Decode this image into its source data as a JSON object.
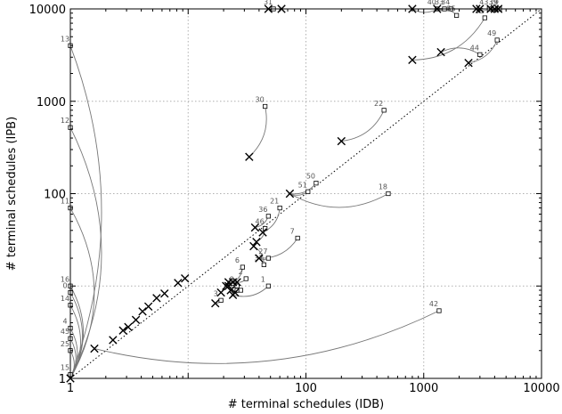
{
  "chart_data": {
    "type": "scatter",
    "xlabel": "# terminal schedules (IDB)",
    "ylabel": "# terminal schedules (IPB)",
    "xscale": "log",
    "yscale": "log",
    "xlim": [
      1,
      10000
    ],
    "ylim": [
      1,
      10000
    ],
    "xticks": [
      {
        "value": 1,
        "label": "1"
      },
      {
        "value": 100,
        "label": "100"
      },
      {
        "value": 1000,
        "label": "1000"
      },
      {
        "value": 10000,
        "label": "10000"
      }
    ],
    "yticks": [
      {
        "value": 1,
        "label": "1"
      },
      {
        "value": 100,
        "label": "100"
      },
      {
        "value": 1000,
        "label": "1000"
      },
      {
        "value": 10000,
        "label": "10000"
      }
    ],
    "grid": true,
    "diagonal": true,
    "points": [
      {
        "label": "13",
        "from": [
          1,
          1
        ],
        "to": [
          1,
          4000
        ]
      },
      {
        "label": "12",
        "from": [
          1,
          1
        ],
        "to": [
          1,
          520
        ]
      },
      {
        "label": "11",
        "from": [
          1,
          1
        ],
        "to": [
          1,
          70
        ]
      },
      {
        "label": "16",
        "from": [
          1,
          1
        ],
        "to": [
          1,
          10
        ]
      },
      {
        "label": "0",
        "from": [
          1,
          1
        ],
        "to": [
          1,
          8.5
        ]
      },
      {
        "label": "14",
        "from": [
          1,
          1
        ],
        "to": [
          1,
          6.2
        ]
      },
      {
        "label": "4",
        "from": [
          1,
          1
        ],
        "to": [
          1,
          3.5
        ]
      },
      {
        "label": "45",
        "from": [
          1,
          1
        ],
        "to": [
          1,
          2.7
        ]
      },
      {
        "label": "25",
        "from": [
          1,
          1
        ],
        "to": [
          1,
          2.0
        ]
      },
      {
        "label": "15",
        "from": [
          1,
          1
        ],
        "to": [
          1,
          1.1
        ]
      },
      {
        "label": "31",
        "from": [
          48,
          10000
        ],
        "to": [
          53,
          10000
        ]
      },
      {
        "label": "30",
        "from": [
          33,
          250
        ],
        "to": [
          45,
          880
        ]
      },
      {
        "label": "22",
        "from": [
          200,
          370
        ],
        "to": [
          460,
          800
        ]
      },
      {
        "label": "36",
        "from": [
          37,
          43
        ],
        "to": [
          48,
          57
        ]
      },
      {
        "label": "46",
        "from": [
          38,
          30
        ],
        "to": [
          45,
          42
        ]
      },
      {
        "label": "21",
        "from": [
          43,
          38
        ],
        "to": [
          60,
          70
        ]
      },
      {
        "label": "51",
        "from": [
          73,
          100
        ],
        "to": [
          104,
          105
        ]
      },
      {
        "label": "50",
        "from": [
          73,
          100
        ],
        "to": [
          122,
          130
        ]
      },
      {
        "label": "18",
        "from": [
          73,
          100
        ],
        "to": [
          500,
          100
        ]
      },
      {
        "label": "7",
        "from": [
          40,
          20
        ],
        "to": [
          85,
          33
        ]
      },
      {
        "label": "27",
        "from": [
          40,
          20
        ],
        "to": [
          48,
          20
        ]
      },
      {
        "label": "37",
        "from": [
          36,
          27
        ],
        "to": [
          44,
          17
        ]
      },
      {
        "label": "6",
        "from": [
          24,
          11
        ],
        "to": [
          29,
          16
        ]
      },
      {
        "label": "2",
        "from": [
          26,
          11
        ],
        "to": [
          31,
          12
        ]
      },
      {
        "label": "8",
        "from": [
          22,
          10
        ],
        "to": [
          26,
          10
        ]
      },
      {
        "label": "29",
        "from": [
          23,
          9
        ],
        "to": [
          26,
          9
        ]
      },
      {
        "label": "5",
        "from": [
          25,
          8.5
        ],
        "to": [
          28,
          9
        ]
      },
      {
        "label": "3",
        "from": [
          17,
          6.5
        ],
        "to": [
          19,
          7
        ]
      },
      {
        "label": "1",
        "from": [
          24,
          8
        ],
        "to": [
          48,
          10
        ]
      },
      {
        "label": "42",
        "from": [
          1.6,
          2.1
        ],
        "to": [
          1350,
          5.4
        ]
      },
      {
        "label": "49",
        "from": [
          2400,
          2600
        ],
        "to": [
          4200,
          4600
        ]
      },
      {
        "label": "44",
        "from": [
          1400,
          3400
        ],
        "to": [
          3000,
          3200
        ]
      },
      {
        "label": "35",
        "from": [
          800,
          2800
        ],
        "to": [
          3300,
          8000
        ]
      },
      {
        "label": "40",
        "from": [
          800,
          10000
        ],
        "to": [
          1300,
          10000
        ]
      },
      {
        "label": "33",
        "from": [
          1300,
          10000
        ],
        "to": [
          1500,
          10000
        ]
      },
      {
        "label": "34",
        "from": [
          1300,
          10000
        ],
        "to": [
          1700,
          10000
        ]
      },
      {
        "label": "55",
        "from": [
          1300,
          10000
        ],
        "to": [
          1900,
          8500
        ]
      },
      {
        "label": "43",
        "from": [
          2800,
          10000
        ],
        "to": [
          3600,
          10000
        ]
      },
      {
        "label": "39",
        "from": [
          3700,
          10000
        ],
        "to": [
          4300,
          10000
        ]
      },
      {
        "label": "19",
        "from": [
          4000,
          10000
        ],
        "to": [
          4400,
          10000
        ]
      }
    ],
    "extra_crosses": [
      [
        1,
        1
      ],
      [
        1.6,
        2.1
      ],
      [
        2.3,
        2.6
      ],
      [
        2.8,
        3.3
      ],
      [
        3.1,
        3.6
      ],
      [
        3.6,
        4.3
      ],
      [
        4.1,
        5.3
      ],
      [
        4.6,
        6.0
      ],
      [
        5.4,
        7.4
      ],
      [
        6.3,
        8.3
      ],
      [
        8.2,
        10.8
      ],
      [
        9.4,
        12.1
      ],
      [
        21,
        10
      ],
      [
        22,
        11
      ],
      [
        19,
        8.5
      ],
      [
        62,
        10000
      ],
      [
        3000,
        10000
      ],
      [
        4300,
        10000
      ]
    ]
  }
}
